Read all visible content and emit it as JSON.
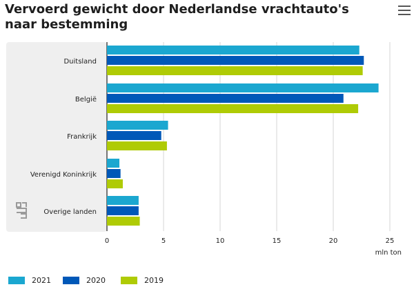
{
  "title": "Vervoerd gewicht door Nederlandse vrachtauto's naar bestemming",
  "menu_icon": "hamburger-menu-icon",
  "logo_icon": "cbs-logo-icon",
  "colors": {
    "2021": "#1BA7D0",
    "2020": "#0058B8",
    "2019": "#AFCB05",
    "panel_bg": "#efefef",
    "grid": "#d6d6d6"
  },
  "chart_data": {
    "type": "bar",
    "orientation": "horizontal",
    "categories": [
      "Duitsland",
      "België",
      "Frankrijk",
      "Verenigd Koninkrijk",
      "Overige landen"
    ],
    "series": [
      {
        "name": "2021",
        "values": [
          22.3,
          24.0,
          5.4,
          1.1,
          2.8
        ]
      },
      {
        "name": "2020",
        "values": [
          22.7,
          20.9,
          4.8,
          1.2,
          2.8
        ]
      },
      {
        "name": "2019",
        "values": [
          22.6,
          22.2,
          5.3,
          1.4,
          2.9
        ]
      }
    ],
    "xticks": [
      "0",
      "5",
      "10",
      "15",
      "20",
      "25"
    ],
    "xlim": [
      0,
      25
    ],
    "xlabel": "mln ton",
    "grid": true,
    "legend_position": "bottom"
  }
}
